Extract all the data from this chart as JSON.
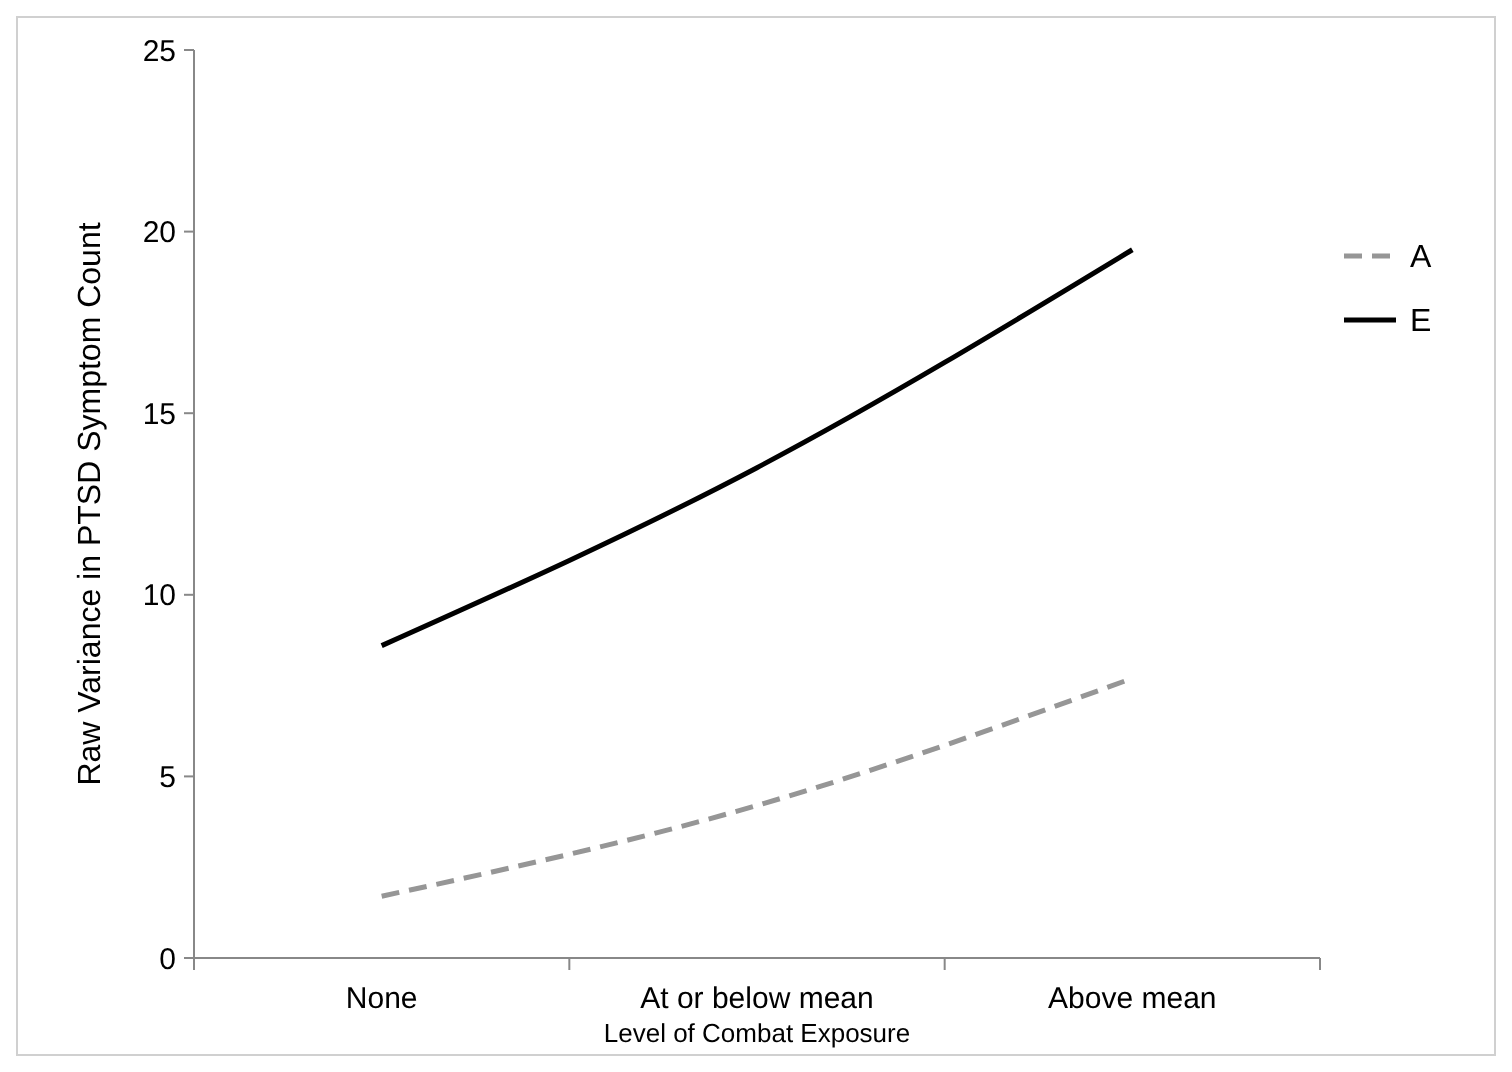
{
  "chart_data": {
    "type": "line",
    "xlabel": "Level of Combat Exposure",
    "ylabel": "Raw Variance in PTSD Symptom Count",
    "categories": [
      "None",
      "At or below mean",
      "Above mean"
    ],
    "series": [
      {
        "name": "A",
        "color": "#969696",
        "values": [
          1.7,
          4.2,
          7.7
        ],
        "line_style": "dashed"
      },
      {
        "name": "E",
        "color": "#000000",
        "values": [
          8.6,
          13.5,
          19.5
        ],
        "line_style": "solid"
      }
    ],
    "ylim": [
      0,
      25
    ],
    "yticks": [
      0,
      5,
      10,
      15,
      20,
      25
    ],
    "grid": false,
    "legend": "right",
    "marker": "none"
  }
}
